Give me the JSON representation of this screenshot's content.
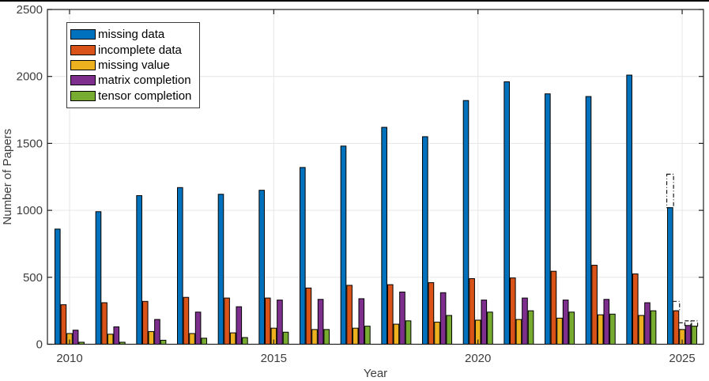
{
  "chart_data": {
    "type": "bar",
    "title": "",
    "xlabel": "Year",
    "ylabel": "Number of Papers",
    "ylim": [
      0,
      2500
    ],
    "yticks": [
      0,
      500,
      1000,
      1500,
      2000,
      2500
    ],
    "xtick_labels": [
      "2010",
      "2015",
      "2020",
      "2025"
    ],
    "xtick_years": [
      2010,
      2015,
      2020,
      2025
    ],
    "grid": "both-at-major-ticks",
    "legend_position": "top-left-inside",
    "categories": [
      2010,
      2011,
      2012,
      2013,
      2014,
      2015,
      2016,
      2017,
      2018,
      2019,
      2020,
      2021,
      2022,
      2023,
      2024,
      2025
    ],
    "series": [
      {
        "name": "missing data",
        "color": "#0072BD",
        "values": [
          860,
          990,
          1110,
          1170,
          1120,
          1150,
          1320,
          1480,
          1620,
          1550,
          1820,
          1960,
          1870,
          1850,
          2010,
          1020
        ]
      },
      {
        "name": "incomplete data",
        "color": "#D95319",
        "values": [
          295,
          310,
          320,
          350,
          345,
          345,
          420,
          440,
          445,
          460,
          490,
          495,
          545,
          590,
          525,
          250
        ]
      },
      {
        "name": "missing value",
        "color": "#EDB120",
        "values": [
          80,
          75,
          95,
          80,
          85,
          120,
          110,
          120,
          150,
          165,
          180,
          185,
          195,
          220,
          215,
          110
        ]
      },
      {
        "name": "matrix completion",
        "color": "#7E2F8E",
        "values": [
          105,
          130,
          185,
          240,
          280,
          330,
          335,
          340,
          390,
          385,
          330,
          345,
          330,
          335,
          310,
          140
        ]
      },
      {
        "name": "tensor completion",
        "color": "#77AC30",
        "values": [
          15,
          15,
          30,
          45,
          50,
          90,
          110,
          135,
          175,
          215,
          240,
          250,
          240,
          225,
          250,
          135
        ]
      }
    ],
    "projection_2025": {
      "style": "dash-dot-outline-box-above-bar",
      "year": 2025,
      "projected_values": [
        1270,
        320,
        160,
        175,
        175
      ]
    }
  },
  "colors": {
    "background": "#ffffff",
    "top_border": "#000000",
    "axis": "#1f1f1f",
    "grid": "#e6e6e6",
    "tick_label": "#3d3d3d",
    "bar_edge": "#000000"
  }
}
